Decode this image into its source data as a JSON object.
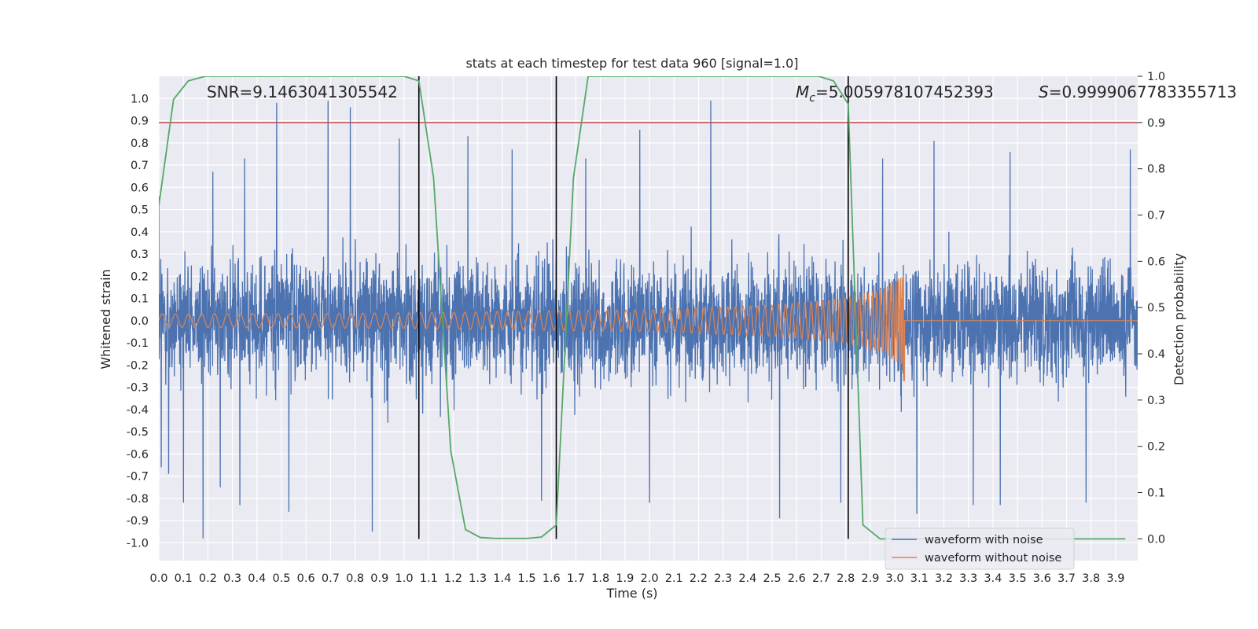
{
  "chart_data": {
    "type": "line",
    "title": "stats at each timestep for test data 960 [signal=1.0]",
    "xlabel": "Time (s)",
    "ylabel": "Whitened strain",
    "y2label": "Detection probability",
    "xlim": [
      0.0,
      3.99
    ],
    "ylim": [
      -1.08,
      1.1
    ],
    "y2lim": [
      -0.047,
      1.0
    ],
    "x_ticks": [
      "0.0",
      "0.1",
      "0.2",
      "0.3",
      "0.4",
      "0.5",
      "0.6",
      "0.7",
      "0.8",
      "0.9",
      "1.0",
      "1.1",
      "1.2",
      "1.3",
      "1.4",
      "1.5",
      "1.6",
      "1.7",
      "1.8",
      "1.9",
      "2.0",
      "2.1",
      "2.2",
      "2.3",
      "2.4",
      "2.5",
      "2.6",
      "2.7",
      "2.8",
      "2.9",
      "3.0",
      "3.1",
      "3.2",
      "3.3",
      "3.4",
      "3.5",
      "3.6",
      "3.7",
      "3.8",
      "3.9"
    ],
    "y_ticks": [
      "-1.0",
      "-0.9",
      "-0.8",
      "-0.7",
      "-0.6",
      "-0.5",
      "-0.4",
      "-0.3",
      "-0.2",
      "-0.1",
      "0.0",
      "0.1",
      "0.2",
      "0.3",
      "0.4",
      "0.5",
      "0.6",
      "0.7",
      "0.8",
      "0.9",
      "1.0"
    ],
    "y2_ticks": [
      "0.0",
      "0.1",
      "0.2",
      "0.3",
      "0.4",
      "0.5",
      "0.6",
      "0.7",
      "0.8",
      "0.9",
      "1.0"
    ],
    "grid": true,
    "legend_position": "lower-right",
    "annotations": {
      "snr": "SNR=9.1463041305542",
      "mc_symbol": "M",
      "mc_sub": "c",
      "mc_value": "=5.005978107452393",
      "s_symbol": "S",
      "s_value": "=0.9999067783355713"
    },
    "threshold": {
      "axis": "y2",
      "value": 0.9,
      "color": "#c44e52"
    },
    "vertical_lines_x": [
      1.06,
      1.62,
      2.81
    ],
    "series": [
      {
        "name": "waveform with noise",
        "axis": "y",
        "color": "#4c72b0",
        "style": "dense-noise",
        "typical_amplitude": 0.3,
        "peak_samples": [
          {
            "x": 0.0,
            "y": 0.56
          },
          {
            "x": 0.01,
            "y": -0.66
          },
          {
            "x": 0.04,
            "y": -0.69
          },
          {
            "x": 0.1,
            "y": -0.82
          },
          {
            "x": 0.18,
            "y": -0.98
          },
          {
            "x": 0.22,
            "y": 0.67
          },
          {
            "x": 0.25,
            "y": -0.75
          },
          {
            "x": 0.33,
            "y": -0.83
          },
          {
            "x": 0.35,
            "y": 0.73
          },
          {
            "x": 0.48,
            "y": 0.98
          },
          {
            "x": 0.53,
            "y": -0.86
          },
          {
            "x": 0.69,
            "y": 0.99
          },
          {
            "x": 0.78,
            "y": 0.96
          },
          {
            "x": 0.87,
            "y": -0.95
          },
          {
            "x": 0.98,
            "y": 0.82
          },
          {
            "x": 1.26,
            "y": 0.83
          },
          {
            "x": 1.44,
            "y": 0.77
          },
          {
            "x": 1.56,
            "y": -0.81
          },
          {
            "x": 1.74,
            "y": 0.73
          },
          {
            "x": 1.96,
            "y": 0.86
          },
          {
            "x": 2.0,
            "y": -0.82
          },
          {
            "x": 2.25,
            "y": 0.99
          },
          {
            "x": 2.53,
            "y": -0.89
          },
          {
            "x": 2.78,
            "y": -0.82
          },
          {
            "x": 2.95,
            "y": 0.73
          },
          {
            "x": 3.09,
            "y": -0.87
          },
          {
            "x": 3.16,
            "y": 0.81
          },
          {
            "x": 3.32,
            "y": -0.83
          },
          {
            "x": 3.43,
            "y": -0.83
          },
          {
            "x": 3.47,
            "y": 0.76
          },
          {
            "x": 3.78,
            "y": -0.82
          },
          {
            "x": 3.96,
            "y": 0.77
          }
        ]
      },
      {
        "name": "waveform without noise",
        "axis": "y",
        "color": "#dd8452",
        "style": "chirp",
        "amplitude_envelope": [
          {
            "x": 0.0,
            "y": 0.03
          },
          {
            "x": 1.0,
            "y": 0.035
          },
          {
            "x": 2.0,
            "y": 0.05
          },
          {
            "x": 2.5,
            "y": 0.07
          },
          {
            "x": 2.8,
            "y": 0.1
          },
          {
            "x": 2.95,
            "y": 0.14
          },
          {
            "x": 3.03,
            "y": 0.2
          },
          {
            "x": 3.04,
            "y": -0.27
          },
          {
            "x": 3.05,
            "y": 0.0
          }
        ],
        "merger_x": 3.04
      },
      {
        "name": "Detection probability",
        "axis": "y2",
        "color": "#55a868",
        "x": [
          0.0,
          0.06,
          0.12,
          0.19,
          0.25,
          0.31,
          0.37,
          0.44,
          0.5,
          0.56,
          0.62,
          0.69,
          0.75,
          0.81,
          0.87,
          0.94,
          1.0,
          1.06,
          1.12,
          1.19,
          1.25,
          1.31,
          1.37,
          1.44,
          1.5,
          1.56,
          1.62,
          1.69,
          1.75,
          1.81,
          1.87,
          1.94,
          2.0,
          2.06,
          2.12,
          2.19,
          2.25,
          2.31,
          2.37,
          2.44,
          2.5,
          2.56,
          2.62,
          2.69,
          2.75,
          2.81,
          2.87,
          2.94,
          3.0,
          3.06,
          3.12,
          3.19,
          3.25,
          3.31,
          3.37,
          3.44,
          3.5,
          3.56,
          3.62,
          3.69,
          3.75,
          3.81,
          3.87,
          3.94
        ],
        "y": [
          0.72,
          0.95,
          0.99,
          1.0,
          1.0,
          1.0,
          1.0,
          1.0,
          1.0,
          1.0,
          1.0,
          1.0,
          1.0,
          1.0,
          1.0,
          1.0,
          1.0,
          0.99,
          0.78,
          0.19,
          0.02,
          0.003,
          0.001,
          0.001,
          0.001,
          0.004,
          0.03,
          0.78,
          1.0,
          1.0,
          1.0,
          1.0,
          1.0,
          1.0,
          1.0,
          1.0,
          1.0,
          1.0,
          1.0,
          1.0,
          1.0,
          1.0,
          1.0,
          1.0,
          0.99,
          0.94,
          0.03,
          0.0,
          0.0,
          0.0,
          0.0,
          0.0,
          0.0,
          0.0,
          0.0,
          0.0,
          0.0,
          0.0,
          0.0,
          0.0,
          0.0,
          0.0,
          0.0,
          0.0
        ]
      }
    ]
  }
}
